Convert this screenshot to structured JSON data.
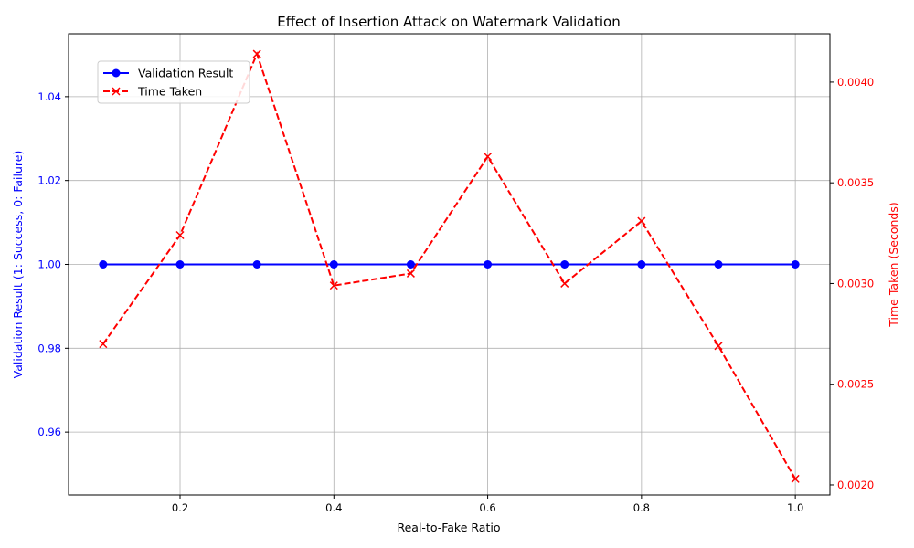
{
  "chart_data": {
    "type": "line",
    "title": "Effect of Insertion Attack on Watermark Validation",
    "xlabel": "Real-to-Fake Ratio",
    "ylabel_left": "Validation Result (1: Success, 0: Failure)",
    "ylabel_right": "Time Taken (Seconds)",
    "x": [
      0.1,
      0.2,
      0.3,
      0.4,
      0.5,
      0.6,
      0.7,
      0.8,
      0.9,
      1.0
    ],
    "xlim": [
      0.055,
      1.045
    ],
    "ylim_left": [
      0.945,
      1.055
    ],
    "ylim_right": [
      0.00195,
      0.00424
    ],
    "xticks": [
      0.2,
      0.4,
      0.6,
      0.8,
      1.0
    ],
    "xtick_labels": [
      "0.2",
      "0.4",
      "0.6",
      "0.8",
      "1.0"
    ],
    "yticks_left": [
      0.96,
      0.98,
      1.0,
      1.02,
      1.04
    ],
    "ytick_labels_left": [
      "0.96",
      "0.98",
      "1.00",
      "1.02",
      "1.04"
    ],
    "yticks_right": [
      0.002,
      0.0025,
      0.003,
      0.0035,
      0.004
    ],
    "ytick_labels_right": [
      "0.0020",
      "0.0025",
      "0.0030",
      "0.0035",
      "0.0040"
    ],
    "grid": true,
    "legend_position": "upper-left",
    "series": [
      {
        "name": "Validation Result",
        "axis": "left",
        "color": "#0000ff",
        "marker": "circle",
        "linestyle": "solid",
        "values": [
          1,
          1,
          1,
          1,
          1,
          1,
          1,
          1,
          1,
          1
        ]
      },
      {
        "name": "Time Taken",
        "axis": "right",
        "color": "#ff0000",
        "marker": "x",
        "linestyle": "dashed",
        "values": [
          0.0027,
          0.00324,
          0.00414,
          0.00299,
          0.00305,
          0.00363,
          0.003,
          0.00331,
          0.00269,
          0.00203
        ]
      }
    ]
  }
}
